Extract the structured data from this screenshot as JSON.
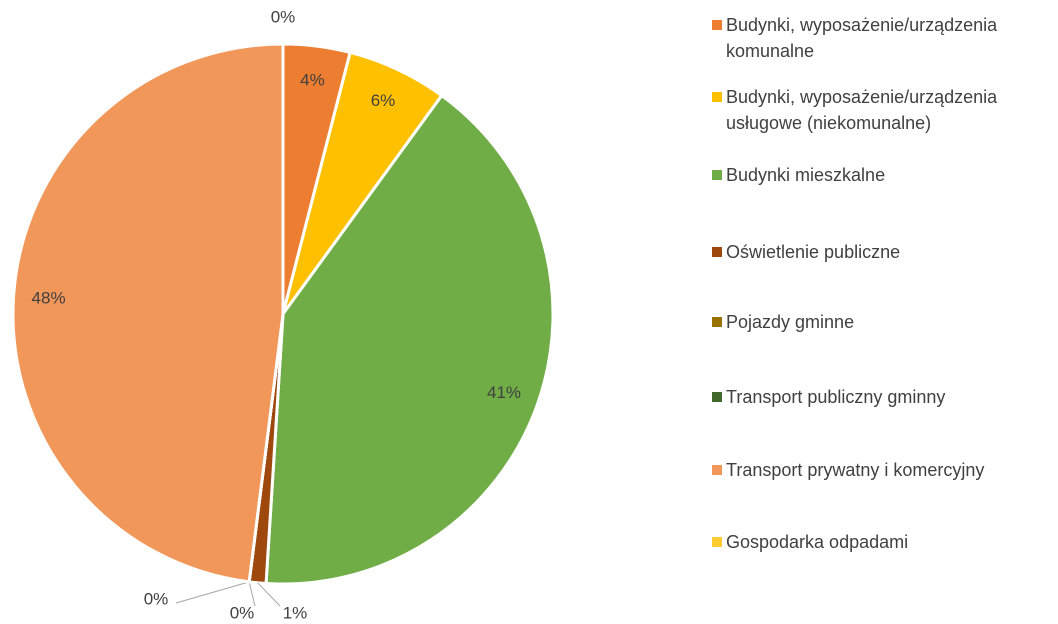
{
  "chart_data": {
    "type": "pie",
    "categories": [
      "Budynki, wyposażenie/urządzenia komunalne",
      "Budynki, wyposażenie/urządzenia usługowe (niekomunalne)",
      "Budynki mieszkalne",
      "Oświetlenie publiczne",
      "Pojazdy gminne",
      "Transport publiczny gminny",
      "Transport prywatny i komercyjny",
      "Gospodarka odpadami"
    ],
    "values": [
      4,
      6,
      41,
      1,
      0,
      0,
      48,
      0
    ],
    "value_labels": [
      "4%",
      "6%",
      "41%",
      "1%",
      "0%",
      "0%",
      "48%",
      "0%"
    ],
    "colors": [
      "#ED7D31",
      "#FFC000",
      "#70AD47",
      "#9E480E",
      "#997300",
      "#43682B",
      "#F1975A",
      "#FFCD33"
    ],
    "legend": "right"
  }
}
